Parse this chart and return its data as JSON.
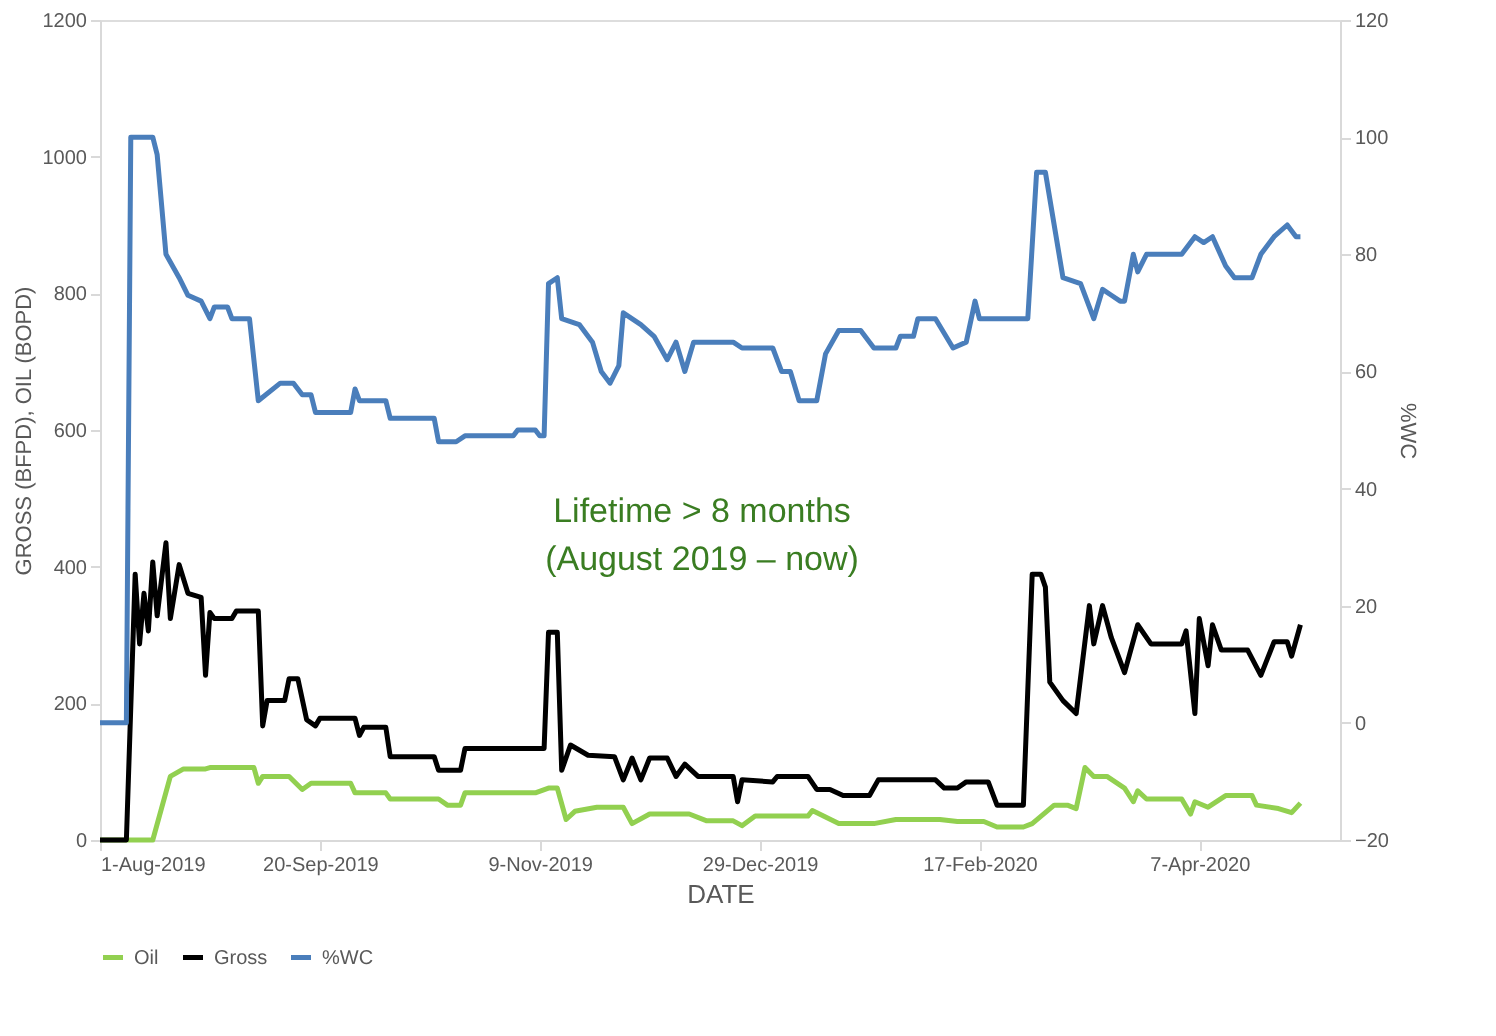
{
  "chart_data": {
    "type": "line",
    "xlabel": "DATE",
    "ylabel": "GROSS (BFPD), OIL (BOPD)",
    "y2label": "%WC",
    "xlim": [
      "2019-08-01",
      "2020-05-09"
    ],
    "xticks": [
      {
        "value": "2019-08-01",
        "label": "1-Aug-2019"
      },
      {
        "value": "2019-09-20",
        "label": "20-Sep-2019"
      },
      {
        "value": "2019-11-09",
        "label": "9-Nov-2019"
      },
      {
        "value": "2019-12-29",
        "label": "29-Dec-2019"
      },
      {
        "value": "2020-02-17",
        "label": "17-Feb-2020"
      },
      {
        "value": "2020-04-07",
        "label": "7-Apr-2020"
      }
    ],
    "ylim": [
      0,
      1200
    ],
    "yticks": [
      0,
      200,
      400,
      600,
      800,
      1000,
      1200
    ],
    "y2lim": [
      -20,
      120
    ],
    "y2ticks": [
      -20,
      0,
      20,
      40,
      60,
      80,
      100,
      120
    ],
    "grid": false,
    "legend": "bottom",
    "marker": "none",
    "line_style": "solid",
    "series": [
      {
        "name": "Oil",
        "color": "#92d050",
        "x": [
          "2019-08-01",
          "2019-08-13",
          "2019-08-17",
          "2019-08-20",
          "2019-08-25",
          "2019-08-26",
          "2019-09-05",
          "2019-09-06",
          "2019-09-07",
          "2019-09-13",
          "2019-09-16",
          "2019-09-18",
          "2019-09-27",
          "2019-09-28",
          "2019-10-05",
          "2019-10-06",
          "2019-10-17",
          "2019-10-19",
          "2019-10-22",
          "2019-10-23",
          "2019-11-08",
          "2019-11-11",
          "2019-11-13",
          "2019-11-15",
          "2019-11-17",
          "2019-11-22",
          "2019-11-28",
          "2019-11-30",
          "2019-12-04",
          "2019-12-13",
          "2019-12-17",
          "2019-12-23",
          "2019-12-25",
          "2019-12-28",
          "2020-01-09",
          "2020-01-10",
          "2020-01-16",
          "2020-01-24",
          "2020-01-29",
          "2020-02-08",
          "2020-02-12",
          "2020-02-18",
          "2020-02-21",
          "2020-02-27",
          "2020-02-29",
          "2020-03-05",
          "2020-03-08",
          "2020-03-10",
          "2020-03-12",
          "2020-03-14",
          "2020-03-17",
          "2020-03-21",
          "2020-03-23",
          "2020-03-24",
          "2020-03-26",
          "2020-04-03",
          "2020-04-05",
          "2020-04-06",
          "2020-04-09",
          "2020-04-13",
          "2020-04-19",
          "2020-04-20",
          "2020-04-25",
          "2020-04-28",
          "2020-04-30"
        ],
        "values": [
          0,
          0,
          93,
          104,
          104,
          106,
          106,
          83,
          93,
          93,
          74,
          83,
          83,
          69,
          69,
          60,
          60,
          51,
          51,
          69,
          69,
          76,
          76,
          30,
          42,
          48,
          48,
          24,
          38,
          38,
          28,
          28,
          21,
          35,
          35,
          43,
          24,
          24,
          30,
          30,
          27,
          27,
          19,
          19,
          24,
          51,
          51,
          46,
          106,
          93,
          93,
          76,
          56,
          72,
          60,
          60,
          38,
          56,
          48,
          65,
          65,
          51,
          46,
          40,
          54
        ]
      },
      {
        "name": "Gross",
        "color": "#000000",
        "x": [
          "2019-08-01",
          "2019-08-07",
          "2019-08-09",
          "2019-08-10",
          "2019-08-11",
          "2019-08-12",
          "2019-08-13",
          "2019-08-14",
          "2019-08-16",
          "2019-08-17",
          "2019-08-19",
          "2019-08-21",
          "2019-08-24",
          "2019-08-25",
          "2019-08-26",
          "2019-08-27",
          "2019-08-31",
          "2019-09-01",
          "2019-09-06",
          "2019-09-07",
          "2019-09-08",
          "2019-09-12",
          "2019-09-13",
          "2019-09-15",
          "2019-09-17",
          "2019-09-19",
          "2019-09-20",
          "2019-09-28",
          "2019-09-29",
          "2019-09-30",
          "2019-10-05",
          "2019-10-06",
          "2019-10-16",
          "2019-10-17",
          "2019-10-22",
          "2019-10-23",
          "2019-11-10",
          "2019-11-11",
          "2019-11-13",
          "2019-11-14",
          "2019-11-16",
          "2019-11-20",
          "2019-11-26",
          "2019-11-28",
          "2019-11-30",
          "2019-12-02",
          "2019-12-04",
          "2019-12-08",
          "2019-12-10",
          "2019-12-12",
          "2019-12-15",
          "2019-12-17",
          "2019-12-23",
          "2019-12-24",
          "2019-12-25",
          "2020-01-01",
          "2020-01-02",
          "2020-01-09",
          "2020-01-11",
          "2020-01-14",
          "2020-01-17",
          "2020-01-23",
          "2020-01-25",
          "2020-02-07",
          "2020-02-09",
          "2020-02-12",
          "2020-02-14",
          "2020-02-19",
          "2020-02-21",
          "2020-02-27",
          "2020-02-29",
          "2020-03-02",
          "2020-03-03",
          "2020-03-04",
          "2020-03-07",
          "2020-03-10",
          "2020-03-13",
          "2020-03-14",
          "2020-03-16",
          "2020-03-18",
          "2020-03-21",
          "2020-03-24",
          "2020-03-27",
          "2020-04-03",
          "2020-04-04",
          "2020-04-06",
          "2020-04-07",
          "2020-04-09",
          "2020-04-10",
          "2020-04-12",
          "2020-04-18",
          "2020-04-21",
          "2020-04-24",
          "2020-04-27",
          "2020-04-28",
          "2020-04-30"
        ],
        "values": [
          0,
          0,
          389,
          287,
          361,
          306,
          407,
          328,
          435,
          324,
          403,
          361,
          355,
          241,
          333,
          324,
          324,
          335,
          335,
          167,
          204,
          204,
          236,
          236,
          176,
          167,
          178,
          178,
          153,
          165,
          165,
          122,
          122,
          102,
          102,
          134,
          134,
          304,
          304,
          102,
          139,
          124,
          122,
          88,
          120,
          88,
          120,
          120,
          93,
          111,
          93,
          93,
          93,
          56,
          88,
          85,
          93,
          93,
          74,
          74,
          65,
          65,
          88,
          88,
          76,
          76,
          85,
          85,
          51,
          51,
          389,
          389,
          370,
          231,
          204,
          185,
          343,
          287,
          343,
          296,
          245,
          315,
          287,
          287,
          306,
          185,
          324,
          255,
          315,
          278,
          278,
          241,
          290,
          290,
          269,
          315
        ]
      },
      {
        "name": "%WC",
        "color": "#4a7ebb",
        "axis": "y2",
        "x": [
          "2019-08-01",
          "2019-08-07",
          "2019-08-08",
          "2019-08-13",
          "2019-08-14",
          "2019-08-16",
          "2019-08-19",
          "2019-08-21",
          "2019-08-24",
          "2019-08-26",
          "2019-08-27",
          "2019-08-30",
          "2019-08-31",
          "2019-09-04",
          "2019-09-06",
          "2019-09-11",
          "2019-09-14",
          "2019-09-16",
          "2019-09-18",
          "2019-09-19",
          "2019-09-27",
          "2019-09-28",
          "2019-09-29",
          "2019-10-05",
          "2019-10-06",
          "2019-10-16",
          "2019-10-17",
          "2019-10-21",
          "2019-10-23",
          "2019-11-03",
          "2019-11-04",
          "2019-11-08",
          "2019-11-09",
          "2019-11-10",
          "2019-11-11",
          "2019-11-13",
          "2019-11-14",
          "2019-11-18",
          "2019-11-21",
          "2019-11-23",
          "2019-11-25",
          "2019-11-27",
          "2019-11-28",
          "2019-12-02",
          "2019-12-05",
          "2019-12-08",
          "2019-12-10",
          "2019-12-12",
          "2019-12-14",
          "2019-12-23",
          "2019-12-25",
          "2020-01-01",
          "2020-01-03",
          "2020-01-05",
          "2020-01-07",
          "2020-01-11",
          "2020-01-13",
          "2020-01-16",
          "2020-01-21",
          "2020-01-24",
          "2020-01-29",
          "2020-01-30",
          "2020-02-02",
          "2020-02-03",
          "2020-02-07",
          "2020-02-11",
          "2020-02-14",
          "2020-02-16",
          "2020-02-17",
          "2020-02-28",
          "2020-03-01",
          "2020-03-03",
          "2020-03-07",
          "2020-03-11",
          "2020-03-14",
          "2020-03-16",
          "2020-03-18",
          "2020-03-20",
          "2020-03-21",
          "2020-03-23",
          "2020-03-24",
          "2020-03-26",
          "2020-04-03",
          "2020-04-06",
          "2020-04-08",
          "2020-04-10",
          "2020-04-13",
          "2020-04-15",
          "2020-04-19",
          "2020-04-21",
          "2020-04-24",
          "2020-04-27",
          "2020-04-29",
          "2020-04-30"
        ],
        "values": [
          0,
          0,
          100,
          100,
          97,
          80,
          76,
          73,
          72,
          69,
          71,
          71,
          69,
          69,
          55,
          58,
          58,
          56,
          56,
          53,
          53,
          57,
          55,
          55,
          52,
          52,
          48,
          48,
          49,
          49,
          50,
          50,
          49,
          49,
          75,
          76,
          69,
          68,
          65,
          60,
          58,
          61,
          70,
          68,
          66,
          62,
          65,
          60,
          65,
          65,
          64,
          64,
          60,
          60,
          55,
          55,
          63,
          67,
          67,
          64,
          64,
          66,
          66,
          69,
          69,
          64,
          65,
          72,
          69,
          69,
          94,
          94,
          76,
          75,
          69,
          74,
          73,
          72,
          72,
          80,
          77,
          80,
          80,
          83,
          82,
          83,
          78,
          76,
          76,
          80,
          83,
          85,
          83,
          83
        ]
      }
    ],
    "annotations": [
      "Lifetime > 8 months\n(August 2019 – now)"
    ]
  }
}
